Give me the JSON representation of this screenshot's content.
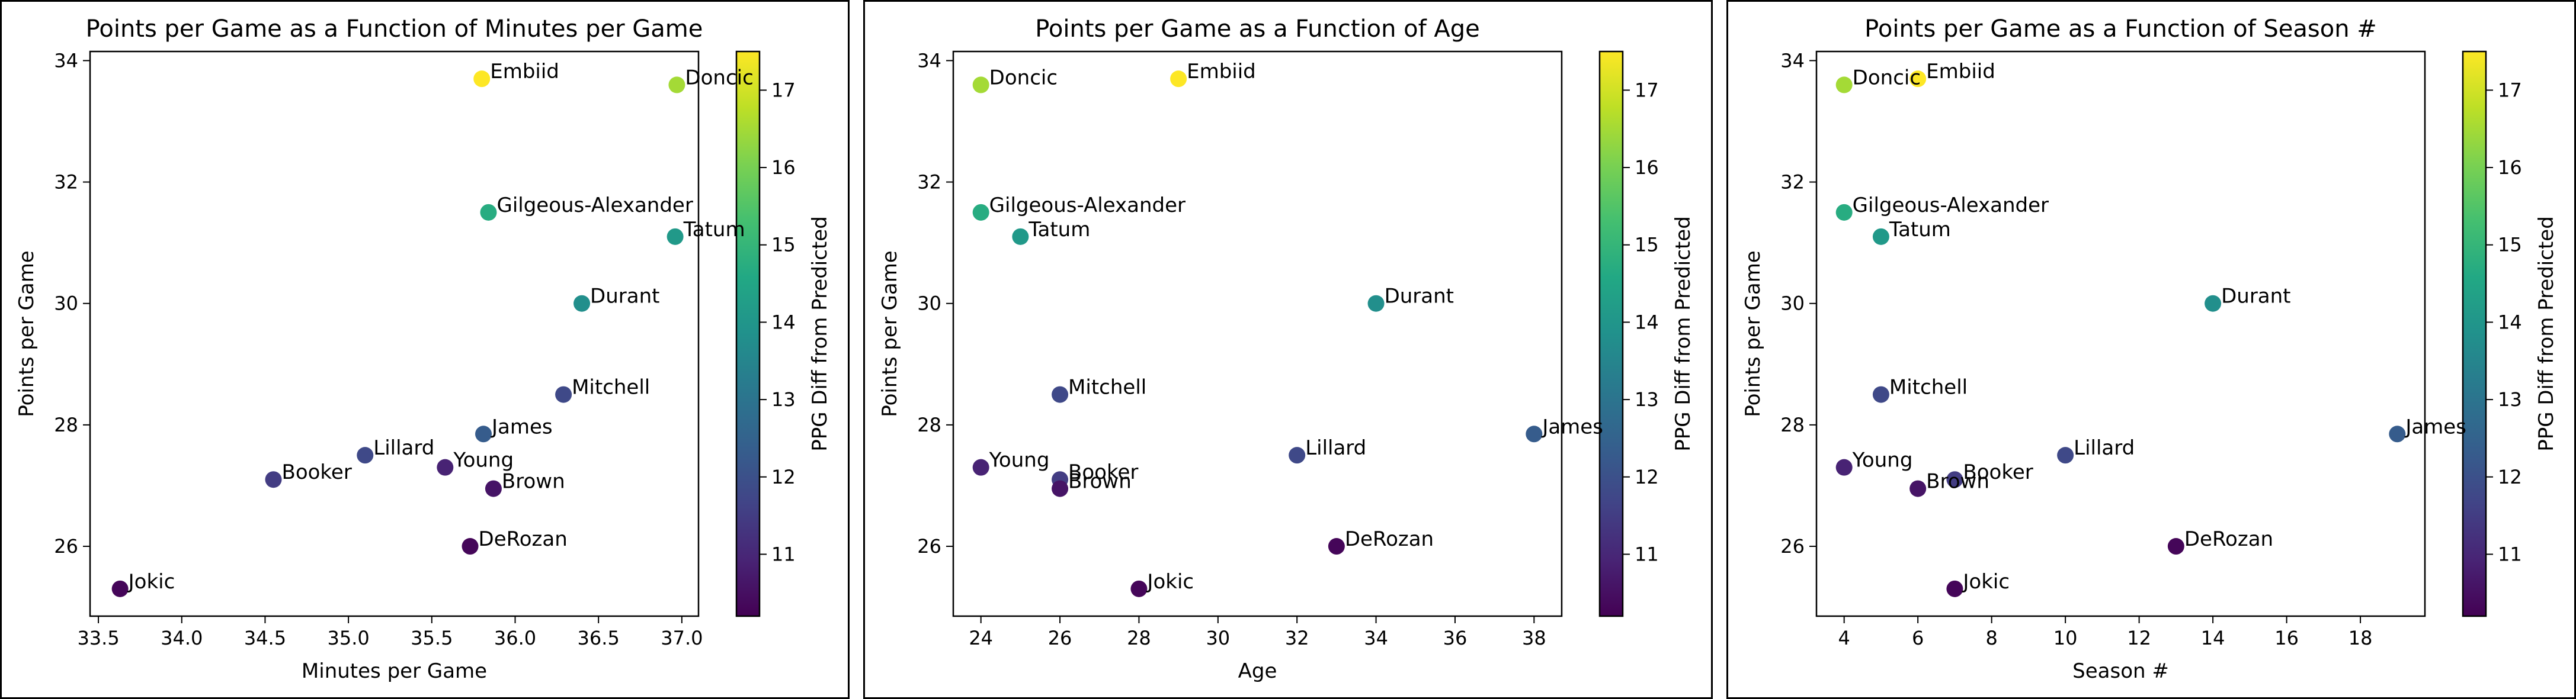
{
  "chart_data": [
    {
      "type": "scatter",
      "title": "Points per Game as a Function of Minutes per Game",
      "xlabel": "Minutes per Game",
      "ylabel": "Points per Game",
      "xlim": [
        33.45,
        37.1
      ],
      "ylim": [
        24.85,
        34.15
      ],
      "xticks": [
        33.5,
        34.0,
        34.5,
        35.0,
        35.5,
        36.0,
        36.5,
        37.0
      ],
      "xtick_labels": [
        "33.5",
        "34.0",
        "34.5",
        "35.0",
        "35.5",
        "36.0",
        "36.5",
        "37.0"
      ],
      "yticks": [
        26,
        28,
        30,
        32,
        34
      ],
      "ytick_labels": [
        "26",
        "28",
        "30",
        "32",
        "34"
      ],
      "colorbar_label": "PPG Diff from Predicted",
      "colorbar_range": [
        10.2,
        17.5
      ],
      "colorbar_ticks": [
        11,
        12,
        13,
        14,
        15,
        16,
        17
      ],
      "colorbar_tick_labels": [
        "11",
        "12",
        "13",
        "14",
        "15",
        "16",
        "17"
      ],
      "grid": false,
      "points": [
        {
          "label": "Embiid",
          "x": 35.8,
          "y": 33.7,
          "c": 17.5
        },
        {
          "label": "Doncic",
          "x": 36.97,
          "y": 33.6,
          "c": 16.5
        },
        {
          "label": "Gilgeous-Alexander",
          "x": 35.84,
          "y": 31.5,
          "c": 14.7
        },
        {
          "label": "Tatum",
          "x": 36.96,
          "y": 31.1,
          "c": 14.1
        },
        {
          "label": "Durant",
          "x": 36.4,
          "y": 30.0,
          "c": 13.8
        },
        {
          "label": "Mitchell",
          "x": 36.29,
          "y": 28.5,
          "c": 11.8
        },
        {
          "label": "James",
          "x": 35.81,
          "y": 27.85,
          "c": 12.3
        },
        {
          "label": "Lillard",
          "x": 35.1,
          "y": 27.5,
          "c": 11.8
        },
        {
          "label": "Young",
          "x": 35.58,
          "y": 27.3,
          "c": 10.9
        },
        {
          "label": "Booker",
          "x": 34.55,
          "y": 27.1,
          "c": 11.5
        },
        {
          "label": "Brown",
          "x": 35.87,
          "y": 26.95,
          "c": 10.6
        },
        {
          "label": "DeRozan",
          "x": 35.73,
          "y": 26.0,
          "c": 10.3
        },
        {
          "label": "Jokic",
          "x": 33.63,
          "y": 25.3,
          "c": 10.3
        }
      ]
    },
    {
      "type": "scatter",
      "title": "Points per Game as a Function of Age",
      "xlabel": "Age",
      "ylabel": "Points per Game",
      "xlim": [
        23.3,
        38.7
      ],
      "ylim": [
        24.85,
        34.15
      ],
      "xticks": [
        24,
        26,
        28,
        30,
        32,
        34,
        36,
        38
      ],
      "xtick_labels": [
        "24",
        "26",
        "28",
        "30",
        "32",
        "34",
        "36",
        "38"
      ],
      "yticks": [
        26,
        28,
        30,
        32,
        34
      ],
      "ytick_labels": [
        "26",
        "28",
        "30",
        "32",
        "34"
      ],
      "colorbar_label": "PPG Diff from Predicted",
      "colorbar_range": [
        10.2,
        17.5
      ],
      "colorbar_ticks": [
        11,
        12,
        13,
        14,
        15,
        16,
        17
      ],
      "colorbar_tick_labels": [
        "11",
        "12",
        "13",
        "14",
        "15",
        "16",
        "17"
      ],
      "grid": false,
      "points": [
        {
          "label": "Embiid",
          "x": 29,
          "y": 33.7,
          "c": 17.5
        },
        {
          "label": "Doncic",
          "x": 24,
          "y": 33.6,
          "c": 16.5
        },
        {
          "label": "Gilgeous-Alexander",
          "x": 24,
          "y": 31.5,
          "c": 14.7
        },
        {
          "label": "Tatum",
          "x": 25,
          "y": 31.1,
          "c": 14.1
        },
        {
          "label": "Durant",
          "x": 34,
          "y": 30.0,
          "c": 13.8
        },
        {
          "label": "Mitchell",
          "x": 26,
          "y": 28.5,
          "c": 11.8
        },
        {
          "label": "James",
          "x": 38,
          "y": 27.85,
          "c": 12.3
        },
        {
          "label": "Lillard",
          "x": 32,
          "y": 27.5,
          "c": 11.8
        },
        {
          "label": "Young",
          "x": 24,
          "y": 27.3,
          "c": 10.9
        },
        {
          "label": "Booker",
          "x": 26,
          "y": 27.1,
          "c": 11.5
        },
        {
          "label": "Brown",
          "x": 26,
          "y": 26.95,
          "c": 10.6
        },
        {
          "label": "DeRozan",
          "x": 33,
          "y": 26.0,
          "c": 10.3
        },
        {
          "label": "Jokic",
          "x": 28,
          "y": 25.3,
          "c": 10.3
        }
      ]
    },
    {
      "type": "scatter",
      "title": "Points per Game as a Function of Season #",
      "xlabel": "Season #",
      "ylabel": "Points per Game",
      "xlim": [
        3.25,
        19.75
      ],
      "ylim": [
        24.85,
        34.15
      ],
      "xticks": [
        4,
        6,
        8,
        10,
        12,
        14,
        16,
        18
      ],
      "xtick_labels": [
        "4",
        "6",
        "8",
        "10",
        "12",
        "14",
        "16",
        "18"
      ],
      "yticks": [
        26,
        28,
        30,
        32,
        34
      ],
      "ytick_labels": [
        "26",
        "28",
        "30",
        "32",
        "34"
      ],
      "colorbar_label": "PPG Diff from Predicted",
      "colorbar_range": [
        10.2,
        17.5
      ],
      "colorbar_ticks": [
        11,
        12,
        13,
        14,
        15,
        16,
        17
      ],
      "colorbar_tick_labels": [
        "11",
        "12",
        "13",
        "14",
        "15",
        "16",
        "17"
      ],
      "grid": false,
      "points": [
        {
          "label": "Embiid",
          "x": 6,
          "y": 33.7,
          "c": 17.5
        },
        {
          "label": "Doncic",
          "x": 4,
          "y": 33.6,
          "c": 16.5
        },
        {
          "label": "Gilgeous-Alexander",
          "x": 4,
          "y": 31.5,
          "c": 14.7
        },
        {
          "label": "Tatum",
          "x": 5,
          "y": 31.1,
          "c": 14.1
        },
        {
          "label": "Durant",
          "x": 14,
          "y": 30.0,
          "c": 13.8
        },
        {
          "label": "Mitchell",
          "x": 5,
          "y": 28.5,
          "c": 11.8
        },
        {
          "label": "James",
          "x": 19,
          "y": 27.85,
          "c": 12.3
        },
        {
          "label": "Lillard",
          "x": 10,
          "y": 27.5,
          "c": 11.8
        },
        {
          "label": "Young",
          "x": 4,
          "y": 27.3,
          "c": 10.9
        },
        {
          "label": "Booker",
          "x": 7,
          "y": 27.1,
          "c": 11.5
        },
        {
          "label": "Brown",
          "x": 6,
          "y": 26.95,
          "c": 10.6
        },
        {
          "label": "DeRozan",
          "x": 13,
          "y": 26.0,
          "c": 10.3
        },
        {
          "label": "Jokic",
          "x": 7,
          "y": 25.3,
          "c": 10.3
        }
      ]
    }
  ]
}
